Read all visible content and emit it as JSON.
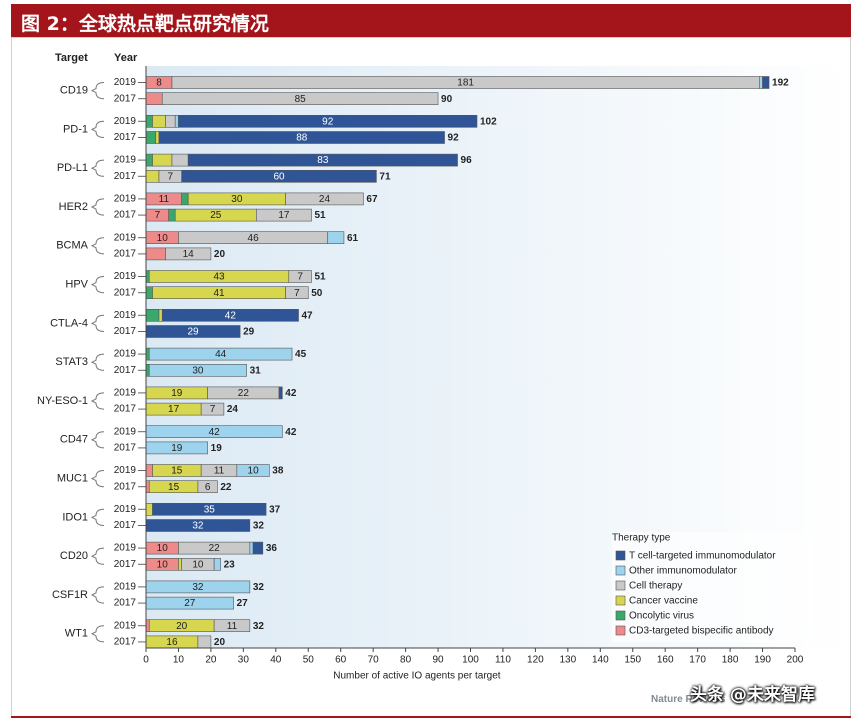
{
  "banner": {
    "title": "图 2：全球热点靶点研究情况"
  },
  "credit": "Nature Reviews",
  "watermark": "头条 @未来智库",
  "colors": {
    "t_cell": "#2f5597",
    "other": "#9dd3ec",
    "cell": "#c9c9c9",
    "vaccine": "#d6d64f",
    "oncolytic": "#3aa86a",
    "cd3": "#ee8a8a",
    "background_gradient_start": "#dbe9f4",
    "background_gradient_end": "#ffffff"
  },
  "chart_data": {
    "type": "bar",
    "orientation": "horizontal",
    "stacked": true,
    "ylabel": "Target",
    "year_header": "Year",
    "xlabel": "Number of active IO agents per target",
    "xlim": [
      0,
      200
    ],
    "xticks": [
      0,
      10,
      20,
      30,
      40,
      50,
      60,
      70,
      80,
      90,
      100,
      110,
      120,
      130,
      140,
      150,
      160,
      170,
      180,
      190,
      200
    ],
    "legend": {
      "title": "Therapy type",
      "placement": "bottom-right",
      "entries": [
        {
          "key": "t_cell",
          "label": "T cell-targeted immunomodulator"
        },
        {
          "key": "other",
          "label": "Other immunomodulator"
        },
        {
          "key": "cell",
          "label": "Cell therapy"
        },
        {
          "key": "vaccine",
          "label": "Cancer vaccine"
        },
        {
          "key": "oncolytic",
          "label": "Oncolytic virus"
        },
        {
          "key": "cd3",
          "label": "CD3-targeted bispecific antibody"
        }
      ]
    },
    "stack_order": [
      "cd3",
      "oncolytic",
      "vaccine",
      "cell",
      "other",
      "t_cell"
    ],
    "targets": [
      {
        "name": "CD19",
        "rows": [
          {
            "year": "2019",
            "total": 192,
            "segments": {
              "cd3": 8,
              "cell": 181,
              "other": 1,
              "t_cell": 2
            },
            "labels": {
              "cd3": "8",
              "cell": "181"
            }
          },
          {
            "year": "2017",
            "total": 90,
            "segments": {
              "cd3": 5,
              "cell": 85
            },
            "labels": {
              "cell": "85"
            }
          }
        ]
      },
      {
        "name": "PD-1",
        "rows": [
          {
            "year": "2019",
            "total": 102,
            "segments": {
              "oncolytic": 2,
              "vaccine": 4,
              "cell": 3,
              "other": 1,
              "t_cell": 92
            },
            "labels": {
              "t_cell": "92"
            }
          },
          {
            "year": "2017",
            "total": 92,
            "segments": {
              "oncolytic": 3,
              "vaccine": 1,
              "t_cell": 88
            },
            "labels": {
              "t_cell": "88"
            }
          }
        ]
      },
      {
        "name": "PD-L1",
        "rows": [
          {
            "year": "2019",
            "total": 96,
            "segments": {
              "oncolytic": 2,
              "vaccine": 6,
              "cell": 5,
              "t_cell": 83
            },
            "labels": {
              "t_cell": "83"
            }
          },
          {
            "year": "2017",
            "total": 71,
            "segments": {
              "vaccine": 4,
              "cell": 7,
              "t_cell": 60
            },
            "labels": {
              "cell": "7",
              "t_cell": "60"
            }
          }
        ]
      },
      {
        "name": "HER2",
        "rows": [
          {
            "year": "2019",
            "total": 67,
            "segments": {
              "cd3": 11,
              "oncolytic": 2,
              "vaccine": 30,
              "cell": 24
            },
            "labels": {
              "cd3": "11",
              "vaccine": "30",
              "cell": "24"
            }
          },
          {
            "year": "2017",
            "total": 51,
            "segments": {
              "cd3": 7,
              "oncolytic": 2,
              "vaccine": 25,
              "cell": 17
            },
            "labels": {
              "cd3": "7",
              "vaccine": "25",
              "cell": "17"
            }
          }
        ]
      },
      {
        "name": "BCMA",
        "rows": [
          {
            "year": "2019",
            "total": 61,
            "segments": {
              "cd3": 10,
              "cell": 46,
              "other": 5
            },
            "labels": {
              "cd3": "10",
              "cell": "46"
            }
          },
          {
            "year": "2017",
            "total": 20,
            "segments": {
              "cd3": 6,
              "cell": 14
            },
            "labels": {
              "cell": "14"
            }
          }
        ]
      },
      {
        "name": "HPV",
        "rows": [
          {
            "year": "2019",
            "total": 51,
            "segments": {
              "oncolytic": 1,
              "vaccine": 43,
              "cell": 7
            },
            "labels": {
              "vaccine": "43",
              "cell": "7"
            }
          },
          {
            "year": "2017",
            "total": 50,
            "segments": {
              "oncolytic": 2,
              "vaccine": 41,
              "cell": 7
            },
            "labels": {
              "vaccine": "41",
              "cell": "7"
            }
          }
        ]
      },
      {
        "name": "CTLA-4",
        "rows": [
          {
            "year": "2019",
            "total": 47,
            "segments": {
              "vaccine": 1,
              "oncolytic": 4,
              "t_cell": 42
            },
            "labels": {
              "t_cell": "42"
            }
          },
          {
            "year": "2017",
            "total": 29,
            "segments": {
              "t_cell": 29
            },
            "labels": {
              "t_cell": "29"
            }
          }
        ]
      },
      {
        "name": "STAT3",
        "rows": [
          {
            "year": "2019",
            "total": 45,
            "segments": {
              "oncolytic": 1,
              "other": 44
            },
            "labels": {
              "other": "44"
            }
          },
          {
            "year": "2017",
            "total": 31,
            "segments": {
              "oncolytic": 1,
              "other": 30
            },
            "labels": {
              "other": "30"
            }
          }
        ]
      },
      {
        "name": "NY-ESO-1",
        "rows": [
          {
            "year": "2019",
            "total": 42,
            "segments": {
              "vaccine": 19,
              "cell": 22,
              "t_cell": 1
            },
            "labels": {
              "vaccine": "19",
              "cell": "22"
            }
          },
          {
            "year": "2017",
            "total": 24,
            "segments": {
              "vaccine": 17,
              "cell": 7
            },
            "labels": {
              "vaccine": "17",
              "cell": "7"
            }
          }
        ]
      },
      {
        "name": "CD47",
        "rows": [
          {
            "year": "2019",
            "total": 42,
            "segments": {
              "other": 42
            },
            "labels": {
              "other": "42"
            }
          },
          {
            "year": "2017",
            "total": 19,
            "segments": {
              "other": 19
            },
            "labels": {
              "other": "19"
            }
          }
        ]
      },
      {
        "name": "MUC1",
        "rows": [
          {
            "year": "2019",
            "total": 38,
            "segments": {
              "cd3": 2,
              "vaccine": 15,
              "cell": 11,
              "other": 10
            },
            "labels": {
              "vaccine": "15",
              "cell": "11",
              "other": "10"
            }
          },
          {
            "year": "2017",
            "total": 22,
            "segments": {
              "cd3": 1,
              "vaccine": 15,
              "cell": 6
            },
            "labels": {
              "vaccine": "15",
              "cell": "6"
            }
          }
        ]
      },
      {
        "name": "IDO1",
        "rows": [
          {
            "year": "2019",
            "total": 37,
            "segments": {
              "vaccine": 2,
              "t_cell": 35
            },
            "labels": {
              "t_cell": "35"
            }
          },
          {
            "year": "2017",
            "total": 32,
            "segments": {
              "t_cell": 32
            },
            "labels": {
              "t_cell": "32"
            }
          }
        ]
      },
      {
        "name": "CD20",
        "rows": [
          {
            "year": "2019",
            "total": 36,
            "segments": {
              "cd3": 10,
              "cell": 22,
              "other": 1,
              "t_cell": 3
            },
            "labels": {
              "cd3": "10",
              "cell": "22"
            }
          },
          {
            "year": "2017",
            "total": 23,
            "segments": {
              "cd3": 10,
              "vaccine": 1,
              "cell": 10,
              "other": 2
            },
            "labels": {
              "cd3": "10",
              "cell": "10"
            }
          }
        ]
      },
      {
        "name": "CSF1R",
        "rows": [
          {
            "year": "2019",
            "total": 32,
            "segments": {
              "other": 32
            },
            "labels": {
              "other": "32"
            }
          },
          {
            "year": "2017",
            "total": 27,
            "segments": {
              "other": 27
            },
            "labels": {
              "other": "27"
            }
          }
        ]
      },
      {
        "name": "WT1",
        "rows": [
          {
            "year": "2019",
            "total": 32,
            "segments": {
              "cd3": 1,
              "vaccine": 20,
              "cell": 11
            },
            "labels": {
              "vaccine": "20",
              "cell": "11"
            }
          },
          {
            "year": "2017",
            "total": 20,
            "segments": {
              "vaccine": 16,
              "cell": 4
            },
            "labels": {
              "vaccine": "16"
            }
          }
        ]
      }
    ]
  }
}
